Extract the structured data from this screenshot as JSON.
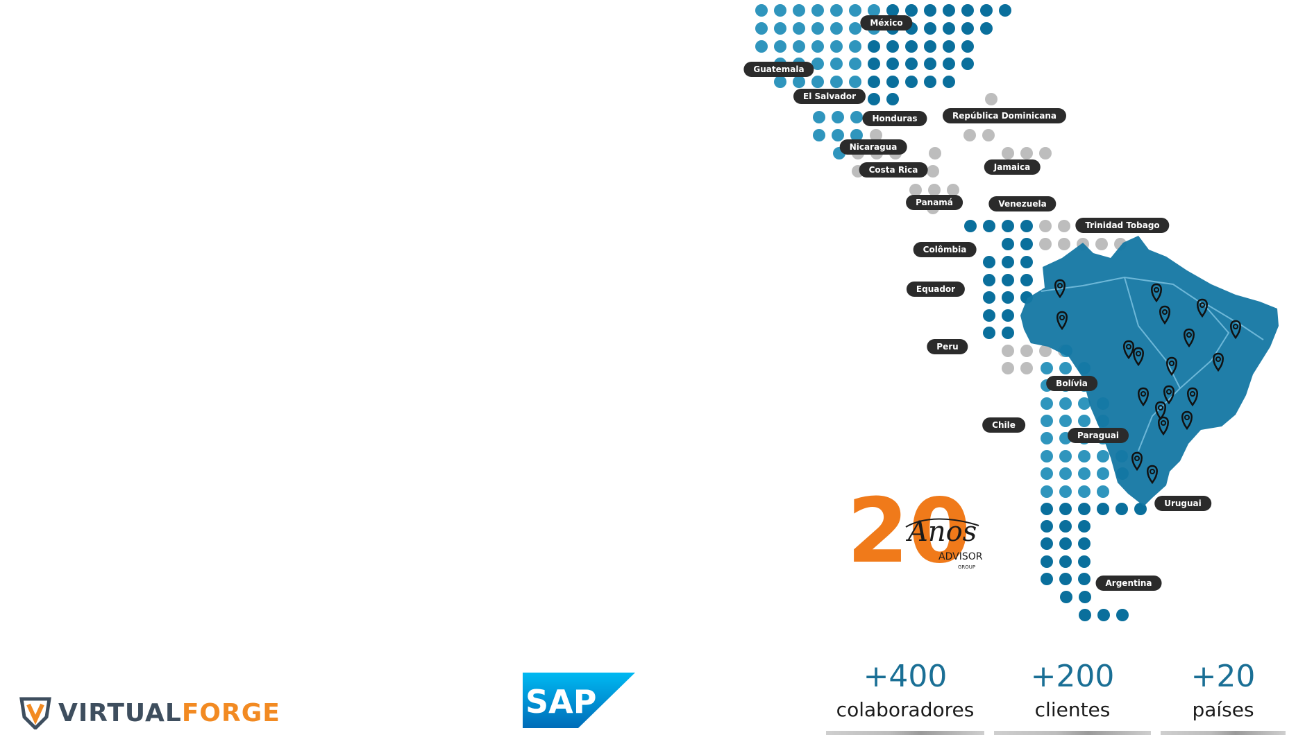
{
  "map": {
    "countries": [
      {
        "id": "mexico",
        "label": "México"
      },
      {
        "id": "guatemala",
        "label": "Guatemala"
      },
      {
        "id": "el-salvador",
        "label": "El Salvador"
      },
      {
        "id": "honduras",
        "label": "Honduras"
      },
      {
        "id": "republica-dominicana",
        "label": "República Dominicana"
      },
      {
        "id": "nicaragua",
        "label": "Nicaragua"
      },
      {
        "id": "costa-rica",
        "label": "Costa Rica"
      },
      {
        "id": "jamaica",
        "label": "Jamaica"
      },
      {
        "id": "panama",
        "label": "Panamá"
      },
      {
        "id": "venezuela",
        "label": "Venezuela"
      },
      {
        "id": "trinidad-tobago",
        "label": "Trinidad Tobago"
      },
      {
        "id": "colombia",
        "label": "Colômbia"
      },
      {
        "id": "equador",
        "label": "Equador"
      },
      {
        "id": "peru",
        "label": "Peru"
      },
      {
        "id": "bolivia",
        "label": "Bolívia"
      },
      {
        "id": "chile",
        "label": "Chile"
      },
      {
        "id": "paraguai",
        "label": "Paraguai"
      },
      {
        "id": "uruguai",
        "label": "Uruguai"
      },
      {
        "id": "argentina",
        "label": "Argentina"
      }
    ],
    "colors": {
      "dot_light": "#2f95bd",
      "dot_dark": "#0a6f9c",
      "dot_gray": "#bdbdbd",
      "brazil": "#1477a3",
      "label_bg": "#2b2b2b"
    }
  },
  "badge": {
    "years": "20",
    "word": "Anos",
    "brand": "ADVISOR",
    "sub": "GROUP"
  },
  "logos": {
    "virtualforge": {
      "part1": "VIRTUAL",
      "part2": "FORGE"
    },
    "sap": "SAP"
  },
  "stats": [
    {
      "value": "+400",
      "label": "colaboradores"
    },
    {
      "value": "+200",
      "label": "clientes"
    },
    {
      "value": "+20",
      "label": "países"
    }
  ]
}
